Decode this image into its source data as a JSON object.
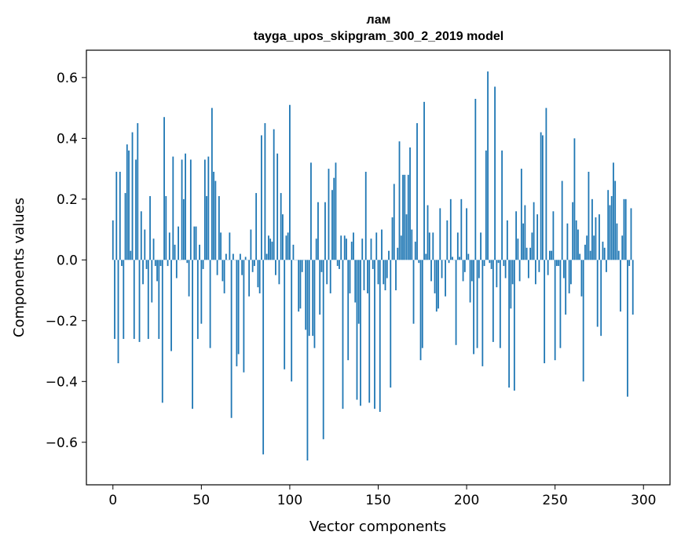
{
  "chart_data": {
    "type": "bar",
    "title": "лам",
    "subtitle": "tayga_upos_skipgram_300_2_2019 model",
    "xlabel": "Vector components",
    "ylabel": "Components values",
    "xlim": [
      -15,
      315
    ],
    "ylim": [
      -0.74,
      0.69
    ],
    "xticks": [
      0,
      50,
      100,
      150,
      200,
      250,
      300
    ],
    "yticks": [
      -0.6,
      -0.4,
      -0.2,
      0.0,
      0.2,
      0.4,
      0.6
    ],
    "ytick_labels": [
      "−0.6",
      "−0.4",
      "−0.2",
      "0.0",
      "0.2",
      "0.4",
      "0.6"
    ],
    "bar_color": "#1f77b4",
    "grid": false,
    "values": [
      0.13,
      -0.26,
      0.29,
      -0.34,
      0.29,
      -0.02,
      -0.26,
      0.22,
      0.38,
      0.36,
      0.03,
      0.42,
      -0.26,
      0.33,
      0.45,
      -0.27,
      0.16,
      -0.08,
      0.1,
      -0.03,
      -0.26,
      0.21,
      -0.14,
      0.07,
      -0.02,
      -0.07,
      -0.26,
      -0.02,
      -0.47,
      0.47,
      0.21,
      -0.02,
      0.09,
      -0.3,
      0.34,
      0.05,
      -0.06,
      0.11,
      0.0,
      0.33,
      0.2,
      0.35,
      -0.01,
      -0.12,
      0.33,
      -0.49,
      0.11,
      0.11,
      -0.26,
      0.05,
      -0.21,
      -0.03,
      0.33,
      0.21,
      0.34,
      -0.29,
      0.5,
      0.29,
      0.26,
      -0.05,
      0.21,
      0.09,
      -0.07,
      -0.11,
      0.02,
      0.0,
      0.09,
      -0.52,
      0.02,
      0.0,
      -0.35,
      -0.31,
      0.02,
      -0.05,
      -0.37,
      0.01,
      0.0,
      -0.12,
      0.1,
      -0.04,
      -0.02,
      0.22,
      -0.09,
      -0.11,
      0.41,
      -0.64,
      0.45,
      0.02,
      0.08,
      0.07,
      0.06,
      0.43,
      -0.05,
      0.35,
      -0.08,
      0.22,
      0.15,
      -0.36,
      0.08,
      0.09,
      0.51,
      -0.4,
      0.05,
      0.0,
      0.0,
      -0.17,
      -0.16,
      -0.04,
      0.0,
      -0.23,
      -0.66,
      -0.25,
      0.32,
      -0.25,
      -0.29,
      0.07,
      0.19,
      -0.18,
      -0.04,
      -0.59,
      0.19,
      -0.08,
      0.3,
      -0.11,
      0.23,
      0.27,
      0.32,
      -0.02,
      -0.03,
      0.08,
      -0.49,
      0.08,
      0.07,
      -0.33,
      -0.11,
      0.06,
      0.09,
      -0.14,
      -0.46,
      -0.21,
      -0.48,
      0.07,
      -0.1,
      0.29,
      -0.11,
      -0.47,
      0.07,
      -0.03,
      -0.49,
      0.09,
      -0.08,
      -0.5,
      0.1,
      -0.08,
      -0.1,
      -0.06,
      0.03,
      -0.42,
      0.14,
      0.25,
      -0.1,
      0.04,
      0.39,
      0.08,
      0.28,
      0.28,
      0.15,
      0.28,
      0.37,
      0.1,
      -0.21,
      0.06,
      0.45,
      -0.01,
      -0.33,
      -0.29,
      0.52,
      0.02,
      0.18,
      0.09,
      -0.07,
      0.09,
      -0.11,
      -0.17,
      -0.16,
      0.17,
      -0.06,
      0.0,
      -0.12,
      0.13,
      -0.01,
      0.2,
      0.01,
      0.0,
      -0.28,
      0.09,
      0.01,
      0.2,
      -0.07,
      -0.04,
      0.17,
      0.02,
      -0.14,
      -0.07,
      -0.31,
      0.53,
      -0.29,
      -0.06,
      0.09,
      -0.35,
      -0.02,
      0.36,
      0.62,
      -0.01,
      -0.03,
      -0.27,
      0.57,
      -0.09,
      -0.01,
      -0.29,
      0.36,
      -0.02,
      -0.06,
      0.13,
      -0.42,
      -0.16,
      -0.08,
      -0.43,
      0.16,
      0.07,
      -0.07,
      0.3,
      0.12,
      0.18,
      0.04,
      -0.06,
      0.04,
      0.09,
      0.19,
      -0.08,
      0.15,
      -0.04,
      0.42,
      0.41,
      -0.34,
      0.5,
      -0.05,
      0.03,
      0.03,
      0.16,
      -0.33,
      -0.02,
      -0.02,
      -0.29,
      0.26,
      -0.06,
      -0.18,
      0.12,
      -0.11,
      -0.08,
      0.19,
      0.4,
      0.13,
      0.1,
      0.02,
      -0.12,
      -0.4,
      0.05,
      0.08,
      0.29,
      0.03,
      0.2,
      0.08,
      0.14,
      -0.22,
      0.15,
      -0.25,
      0.06,
      0.04,
      -0.04,
      0.23,
      0.18,
      0.21,
      0.32,
      0.26,
      0.12,
      0.03,
      -0.17,
      0.08,
      0.2,
      0.2,
      -0.45,
      -0.02,
      0.17,
      -0.18
    ]
  }
}
